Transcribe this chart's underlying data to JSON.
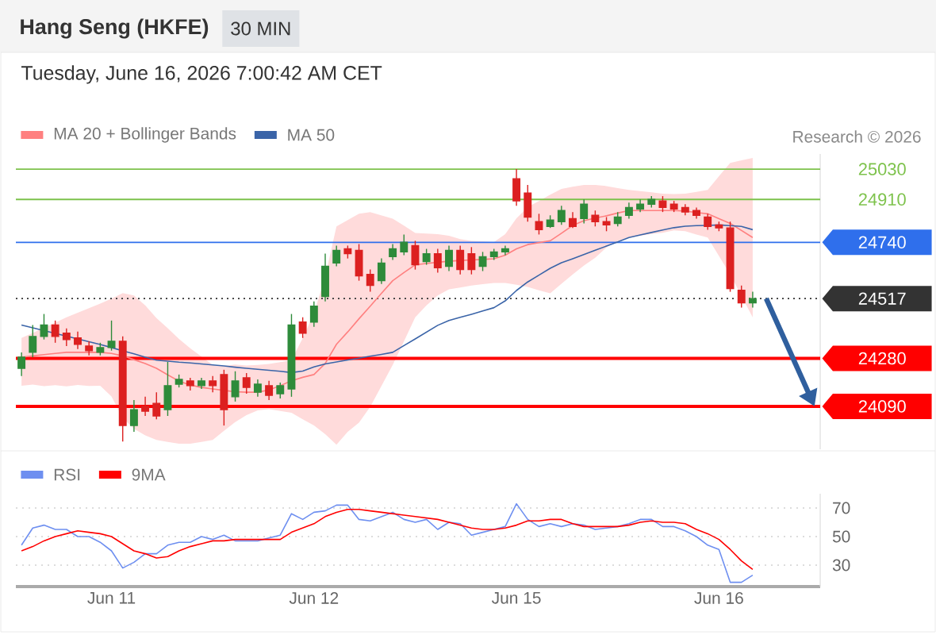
{
  "chart_data": [
    {
      "type": "candlestick",
      "title": "Hang Seng (HKFE)",
      "subtitle": "Tuesday, June 16, 2026 7:00:42 AM CET",
      "annotations": [
        "30 MIN",
        "Research © 2026"
      ],
      "categories": [
        null,
        null,
        null,
        null,
        null,
        null,
        null,
        null,
        null,
        null,
        null,
        null,
        null,
        null,
        null,
        null,
        null,
        null,
        null,
        null,
        null,
        null,
        null,
        null,
        null,
        null,
        null,
        null,
        null,
        null,
        null,
        null,
        null,
        null,
        null,
        null,
        null,
        null,
        null,
        null,
        null,
        null,
        null,
        null,
        null,
        null,
        null,
        null,
        null,
        null,
        null,
        null,
        null,
        null,
        null,
        null,
        null,
        null,
        null,
        null,
        null,
        null,
        null,
        null,
        null,
        null
      ],
      "ohlc": [
        [
          24241,
          24304,
          24210,
          24285
        ],
        [
          24304,
          24412,
          24285,
          24367
        ],
        [
          24367,
          24456,
          24355,
          24412
        ],
        [
          24412,
          24430,
          24342,
          24367
        ],
        [
          24380,
          24399,
          24329,
          24355
        ],
        [
          24361,
          24386,
          24317,
          24336
        ],
        [
          24329,
          24348,
          24292,
          24311
        ],
        [
          24304,
          24342,
          24292,
          24323
        ],
        [
          24323,
          24430,
          24311,
          24348
        ],
        [
          24348,
          24367,
          23951,
          24014
        ],
        [
          24014,
          24115,
          23989,
          24077
        ],
        [
          24090,
          24128,
          24052,
          24071
        ],
        [
          24102,
          24146,
          24039,
          24052
        ],
        [
          24077,
          24266,
          24052,
          24172
        ],
        [
          24178,
          24216,
          24165,
          24197
        ],
        [
          24191,
          24203,
          24153,
          24172
        ],
        [
          24172,
          24203,
          24159,
          24191
        ],
        [
          24191,
          24210,
          24146,
          24172
        ],
        [
          24216,
          24235,
          24014,
          24077
        ],
        [
          24128,
          24229,
          24109,
          24191
        ],
        [
          24203,
          24222,
          24140,
          24165
        ],
        [
          24146,
          24197,
          24128,
          24178
        ],
        [
          24172,
          24191,
          24115,
          24134
        ],
        [
          24140,
          24184,
          24121,
          24172
        ],
        [
          24159,
          24456,
          24128,
          24412
        ],
        [
          24424,
          24443,
          24361,
          24380
        ],
        [
          24424,
          24506,
          24405,
          24487
        ],
        [
          24525,
          24695,
          24506,
          24645
        ],
        [
          24658,
          24727,
          24645,
          24708
        ],
        [
          24714,
          24727,
          24676,
          24695
        ],
        [
          24708,
          24733,
          24588,
          24607
        ],
        [
          24613,
          24632,
          24544,
          24569
        ],
        [
          24588,
          24676,
          24575,
          24658
        ],
        [
          24683,
          24733,
          24670,
          24714
        ],
        [
          24702,
          24771,
          24689,
          24740
        ],
        [
          24727,
          24746,
          24632,
          24651
        ],
        [
          24664,
          24714,
          24651,
          24695
        ],
        [
          24695,
          24714,
          24620,
          24639
        ],
        [
          24645,
          24727,
          24626,
          24708
        ],
        [
          24708,
          24727,
          24613,
          24632
        ],
        [
          24695,
          24721,
          24613,
          24632
        ],
        [
          24645,
          24702,
          24626,
          24683
        ],
        [
          24683,
          24714,
          24670,
          24702
        ],
        [
          24702,
          24727,
          24689,
          24714
        ],
        [
          24992,
          25030,
          24885,
          24904
        ],
        [
          24935,
          24967,
          24822,
          24840
        ],
        [
          24822,
          24853,
          24771,
          24790
        ],
        [
          24803,
          24847,
          24797,
          24828
        ],
        [
          24822,
          24885,
          24809,
          24866
        ],
        [
          24834,
          24860,
          24797,
          24803
        ],
        [
          24834,
          24910,
          24815,
          24891
        ],
        [
          24847,
          24866,
          24803,
          24822
        ],
        [
          24822,
          24840,
          24784,
          24809
        ],
        [
          24815,
          24860,
          24803,
          24840
        ],
        [
          24847,
          24897,
          24834,
          24878
        ],
        [
          24872,
          24910,
          24860,
          24891
        ],
        [
          24891,
          24923,
          24878,
          24910
        ],
        [
          24904,
          24923,
          24860,
          24878
        ],
        [
          24891,
          24904,
          24860,
          24872
        ],
        [
          24878,
          24891,
          24847,
          24860
        ],
        [
          24866,
          24878,
          24834,
          24847
        ],
        [
          24840,
          24853,
          24790,
          24803
        ],
        [
          24809,
          24822,
          24784,
          24797
        ],
        [
          24797,
          24822,
          24544,
          24557
        ],
        [
          24550,
          24569,
          24481,
          24500
        ],
        [
          24500,
          24544,
          24481,
          24517
        ]
      ],
      "series": [
        {
          "name": "MA 20 + Bollinger Bands",
          "type": "line",
          "color": "#ff8080",
          "values": [
            24285,
            24290,
            24295,
            24300,
            24304,
            24304,
            24304,
            24304,
            24300,
            24290,
            24275,
            24260,
            24241,
            24215,
            24190,
            24175,
            24165,
            24159,
            24153,
            24148,
            24146,
            24146,
            24155,
            24172,
            24191,
            24205,
            24216,
            24260,
            24336,
            24385,
            24437,
            24487,
            24538,
            24588,
            24620,
            24651,
            24656,
            24661,
            24665,
            24668,
            24670,
            24672,
            24675,
            24689,
            24714,
            24731,
            24739,
            24746,
            24776,
            24807,
            24826,
            24836,
            24845,
            24856,
            24866,
            24866,
            24866,
            24866,
            24866,
            24864,
            24858,
            24853,
            24834,
            24815,
            24787,
            24759
          ],
          "upper": [
            24361,
            24381,
            24402,
            24422,
            24443,
            24461,
            24479,
            24497,
            24517,
            24539,
            24529,
            24490,
            24440,
            24400,
            24357,
            24320,
            24287,
            24254,
            24250,
            24256,
            24252,
            24254,
            24258,
            24265,
            24273,
            24360,
            24459,
            24605,
            24803,
            24828,
            24853,
            24860,
            24847,
            24834,
            24806,
            24777,
            24775,
            24772,
            24766,
            24753,
            24746,
            24744,
            24741,
            24772,
            24835,
            24879,
            24904,
            24929,
            24952,
            24960,
            24967,
            24967,
            24963,
            24955,
            24948,
            24943,
            24938,
            24933,
            24931,
            24933,
            24940,
            24948,
            25002,
            25055,
            25065,
            25074
          ],
          "lower": [
            24172,
            24176,
            24170,
            24174,
            24169,
            24175,
            24171,
            24172,
            24129,
            24044,
            24001,
            23975,
            23957,
            23949,
            23942,
            23942,
            23949,
            23957,
            23993,
            24028,
            24055,
            24074,
            24079,
            24072,
            24065,
            24039,
            24014,
            23980,
            23938,
            23989,
            24025,
            24088,
            24171,
            24254,
            24348,
            24443,
            24490,
            24529,
            24554,
            24561,
            24569,
            24574,
            24579,
            24579,
            24572,
            24563,
            24550,
            24538,
            24576,
            24613,
            24648,
            24679,
            24720,
            24746,
            24759,
            24766,
            24773,
            24778,
            24787,
            24784,
            24771,
            24759,
            24686,
            24613,
            24528,
            24443
          ]
        },
        {
          "name": "MA 50",
          "type": "line",
          "color": "#3a64a8",
          "values": [
            24412,
            24401,
            24390,
            24379,
            24368,
            24357,
            24346,
            24335,
            24323,
            24310,
            24298,
            24285,
            24273,
            24269,
            24265,
            24262,
            24258,
            24254,
            24250,
            24245,
            24241,
            24237,
            24233,
            24229,
            24224,
            24230,
            24246,
            24258,
            24266,
            24274,
            24281,
            24289,
            24296,
            24304,
            24331,
            24357,
            24384,
            24411,
            24430,
            24443,
            24455,
            24468,
            24481,
            24508,
            24549,
            24583,
            24610,
            24637,
            24659,
            24675,
            24692,
            24709,
            24725,
            24742,
            24759,
            24769,
            24779,
            24789,
            24798,
            24804,
            24806,
            24807,
            24809,
            24806,
            24803,
            24790
          ]
        }
      ],
      "ylim": [
        23920,
        25090
      ],
      "yticks": [
        24090,
        24280,
        24517,
        24740,
        24910,
        25030
      ],
      "ref_lines": [
        {
          "axis": "y",
          "value": 25030,
          "color": "#7dc24b"
        },
        {
          "axis": "y",
          "value": 24910,
          "color": "#7dc24b"
        },
        {
          "axis": "y",
          "value": 24740,
          "color": "#2f6fec"
        },
        {
          "axis": "y",
          "value": 24517,
          "color": "#333333",
          "line_style": "dotted"
        },
        {
          "axis": "y",
          "value": 24280,
          "color": "#ff0000"
        },
        {
          "axis": "y",
          "value": 24090,
          "color": "#ff0000"
        }
      ],
      "legend": "top left",
      "tick_labels": "y"
    },
    {
      "type": "line",
      "categories": [
        null,
        null,
        null,
        null,
        null,
        null,
        null,
        null,
        "Jun 11",
        null,
        null,
        null,
        null,
        null,
        null,
        null,
        null,
        null,
        null,
        null,
        null,
        null,
        null,
        null,
        null,
        null,
        "Jun 12",
        null,
        null,
        null,
        null,
        null,
        null,
        null,
        null,
        null,
        null,
        null,
        null,
        null,
        null,
        null,
        null,
        null,
        "Jun 15",
        null,
        null,
        null,
        null,
        null,
        null,
        null,
        null,
        null,
        null,
        null,
        null,
        null,
        null,
        null,
        null,
        null,
        "Jun 16",
        null,
        null,
        null
      ],
      "series": [
        {
          "name": "RSI",
          "color": "#6e8ff0",
          "values": [
            44,
            56,
            58,
            55,
            55,
            50,
            50,
            46,
            40,
            28,
            32,
            38,
            38,
            44,
            46,
            46,
            50,
            48,
            51,
            47,
            47,
            47,
            49,
            51,
            66,
            62,
            67,
            68,
            72,
            72,
            62,
            61,
            64,
            67,
            62,
            60,
            62,
            55,
            60,
            59,
            51,
            53,
            55,
            57,
            73,
            62,
            57,
            59,
            57,
            59,
            58,
            55,
            56,
            57,
            59,
            62,
            62,
            57,
            57,
            54,
            50,
            44,
            41,
            18,
            18,
            23
          ]
        },
        {
          "name": "9MA",
          "color": "#ff0000",
          "values": [
            40,
            43,
            47,
            50,
            52,
            54,
            53,
            52,
            50,
            45,
            40,
            38,
            35,
            36,
            40,
            43,
            45,
            47,
            47,
            48,
            48,
            48,
            48,
            48,
            53,
            56,
            59,
            64,
            67,
            69,
            69,
            68,
            67,
            66,
            65,
            64,
            63,
            62,
            60,
            58,
            56,
            55,
            55,
            56,
            58,
            61,
            61,
            62,
            62,
            59,
            57,
            57,
            57,
            57,
            58,
            60,
            61,
            60,
            60,
            59,
            55,
            52,
            48,
            41,
            33,
            27
          ]
        }
      ],
      "ylim": [
        15,
        80
      ],
      "yticks": [
        30,
        50,
        70
      ],
      "grid": "y",
      "legend": "top left"
    }
  ]
}
